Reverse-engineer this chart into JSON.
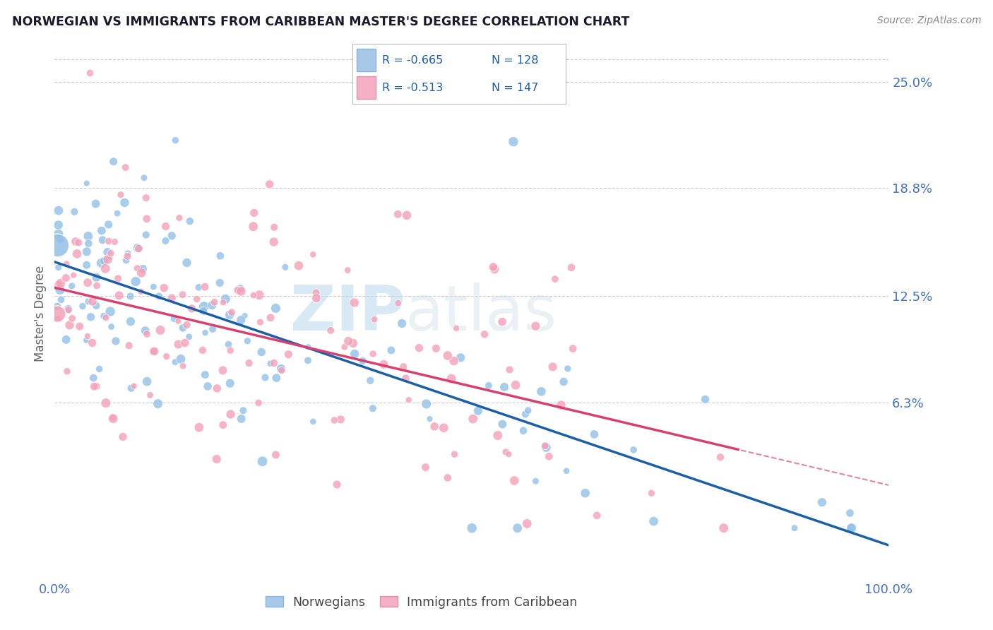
{
  "title": "NORWEGIAN VS IMMIGRANTS FROM CARIBBEAN MASTER'S DEGREE CORRELATION CHART",
  "source": "Source: ZipAtlas.com",
  "ylabel": "Master's Degree",
  "ytick_labels": [
    "25.0%",
    "18.8%",
    "12.5%",
    "6.3%"
  ],
  "ytick_values": [
    0.25,
    0.188,
    0.125,
    0.063
  ],
  "legend_bottom": [
    "Norwegians",
    "Immigrants from Caribbean"
  ],
  "blue_scatter_color": "#92c0e8",
  "pink_scatter_color": "#f5a0b8",
  "blue_line_color": "#1a5fa8",
  "pink_line_color": "#d94070",
  "watermark_color": "#b8d8f0",
  "title_color": "#1a1a2e",
  "axis_label_color": "#4472c4",
  "grid_color": "#cccccc",
  "background_color": "#ffffff",
  "R_blue": -0.665,
  "N_blue": 128,
  "R_pink": -0.513,
  "N_pink": 147,
  "xmin": 0.0,
  "xmax": 1.0,
  "ymin": -0.04,
  "ymax": 0.27,
  "blue_intercept": 0.145,
  "blue_slope": -0.165,
  "pink_intercept": 0.13,
  "pink_slope": -0.115
}
